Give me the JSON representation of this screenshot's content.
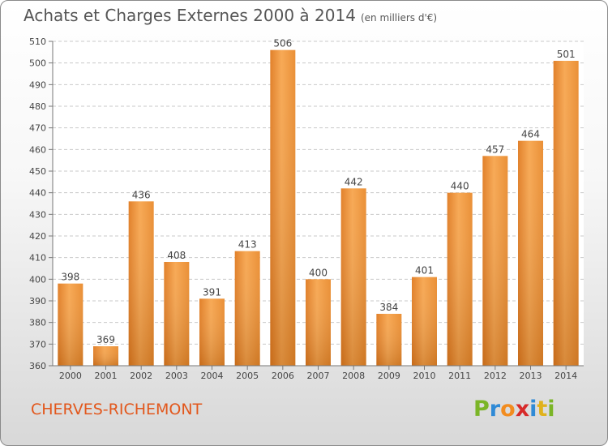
{
  "header": {
    "title": "Achats et Charges Externes 2000 à 2014",
    "unit": "(en milliers d'€)"
  },
  "footer": {
    "place": "CHERVES-RICHEMONT",
    "logo": "Proxiti"
  },
  "colors": {
    "bar_light": "#f5a048",
    "bar_dark": "#cf6a13",
    "title": "#555555",
    "place": "#e2571c",
    "grid": "#c8c8c8"
  },
  "chart_data": {
    "type": "bar",
    "title": "Achats et Charges Externes 2000 à 2014",
    "subtitle": "(en milliers d'€)",
    "xlabel": "",
    "ylabel": "",
    "categories": [
      "2000",
      "2001",
      "2002",
      "2003",
      "2004",
      "2005",
      "2006",
      "2007",
      "2008",
      "2009",
      "2010",
      "2011",
      "2012",
      "2013",
      "2014"
    ],
    "values": [
      398,
      369,
      436,
      408,
      391,
      413,
      506,
      400,
      442,
      384,
      401,
      440,
      457,
      464,
      501
    ],
    "data_labels": [
      "398",
      "369",
      "436",
      "408",
      "391",
      "413",
      "506",
      "400",
      "442",
      "384",
      "401",
      "440",
      "457",
      "464",
      "501"
    ],
    "ylim": [
      360,
      510
    ],
    "yticks": [
      360,
      370,
      380,
      390,
      400,
      410,
      420,
      430,
      440,
      450,
      460,
      470,
      480,
      490,
      500,
      510
    ],
    "grid": true,
    "legend": "none"
  }
}
